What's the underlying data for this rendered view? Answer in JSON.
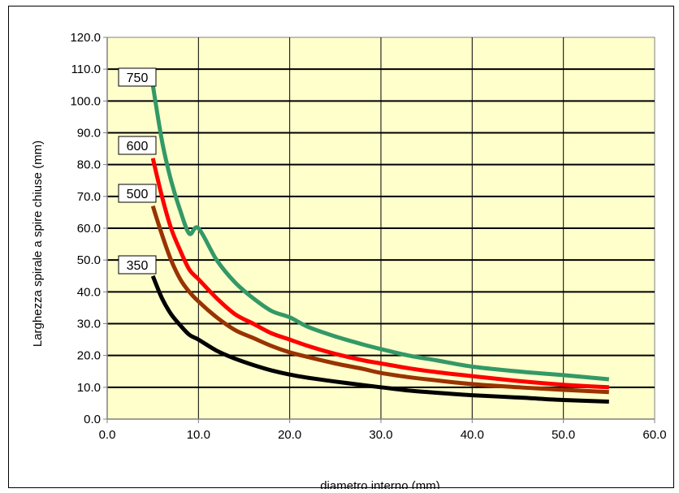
{
  "chart_data": {
    "type": "line",
    "title": "",
    "xlabel": "diametro interno (mm)",
    "ylabel": "Larghezza spirale a spire chiuse (mm)",
    "xlim": [
      0,
      60
    ],
    "ylim": [
      0,
      120
    ],
    "x_ticks": [
      "0.0",
      "10.0",
      "20.0",
      "30.0",
      "40.0",
      "50.0",
      "60.0"
    ],
    "y_ticks": [
      "0.0",
      "10.0",
      "20.0",
      "30.0",
      "40.0",
      "50.0",
      "60.0",
      "70.0",
      "80.0",
      "90.0",
      "100.0",
      "110.0",
      "120.0"
    ],
    "grid": true,
    "plot_background": "#ffffcc",
    "x": [
      5,
      6,
      7,
      8,
      9,
      10,
      12,
      14,
      16,
      18,
      20,
      22,
      25,
      28,
      30,
      33,
      36,
      40,
      45,
      50,
      55
    ],
    "series": [
      {
        "name": "750",
        "color": "#339966",
        "values": [
          105,
          87.5,
          75,
          65.6,
          58.3,
          60,
          50,
          43,
          38,
          34,
          32,
          29,
          26,
          23.5,
          22,
          20,
          18.5,
          16.5,
          15,
          13.8,
          12.5
        ]
      },
      {
        "name": "600",
        "color": "#ff0000",
        "values": [
          82,
          70,
          60,
          53,
          47,
          44,
          38,
          33,
          30,
          27,
          25,
          23,
          20.5,
          18.5,
          17.5,
          16,
          14.8,
          13.5,
          12,
          10.8,
          10
        ]
      },
      {
        "name": "500",
        "color": "#993300",
        "values": [
          67,
          58,
          50,
          44,
          40,
          37,
          32,
          28,
          25.5,
          23,
          21,
          19.5,
          17.5,
          15.8,
          14.5,
          13.2,
          12.2,
          11,
          10,
          9.2,
          8.5
        ]
      },
      {
        "name": "350",
        "color": "#000000",
        "values": [
          45,
          38,
          33,
          29.5,
          26.5,
          25,
          21.5,
          19,
          17,
          15.3,
          14,
          13,
          11.8,
          10.7,
          10,
          9,
          8.3,
          7.5,
          6.8,
          6,
          5.5
        ]
      }
    ]
  }
}
